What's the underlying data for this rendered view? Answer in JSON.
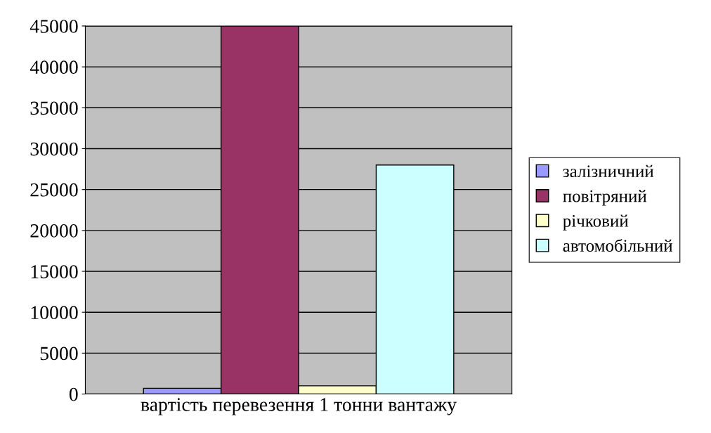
{
  "chart_data": {
    "type": "bar",
    "categories": [
      "вартість перевезення 1 тонни вантажу"
    ],
    "series": [
      {
        "name": "залізничний",
        "color": "#9999ff",
        "values": [
          700
        ]
      },
      {
        "name": "повітряний",
        "color": "#993366",
        "values": [
          45000
        ]
      },
      {
        "name": "річковий",
        "color": "#ffffcc",
        "values": [
          1000
        ]
      },
      {
        "name": "автомобільний",
        "color": "#ccffff",
        "values": [
          28000
        ]
      }
    ],
    "ylim": [
      0,
      45000
    ],
    "yticks": [
      0,
      5000,
      10000,
      15000,
      20000,
      25000,
      30000,
      35000,
      40000,
      45000
    ],
    "grid": "y",
    "legend": "right"
  }
}
